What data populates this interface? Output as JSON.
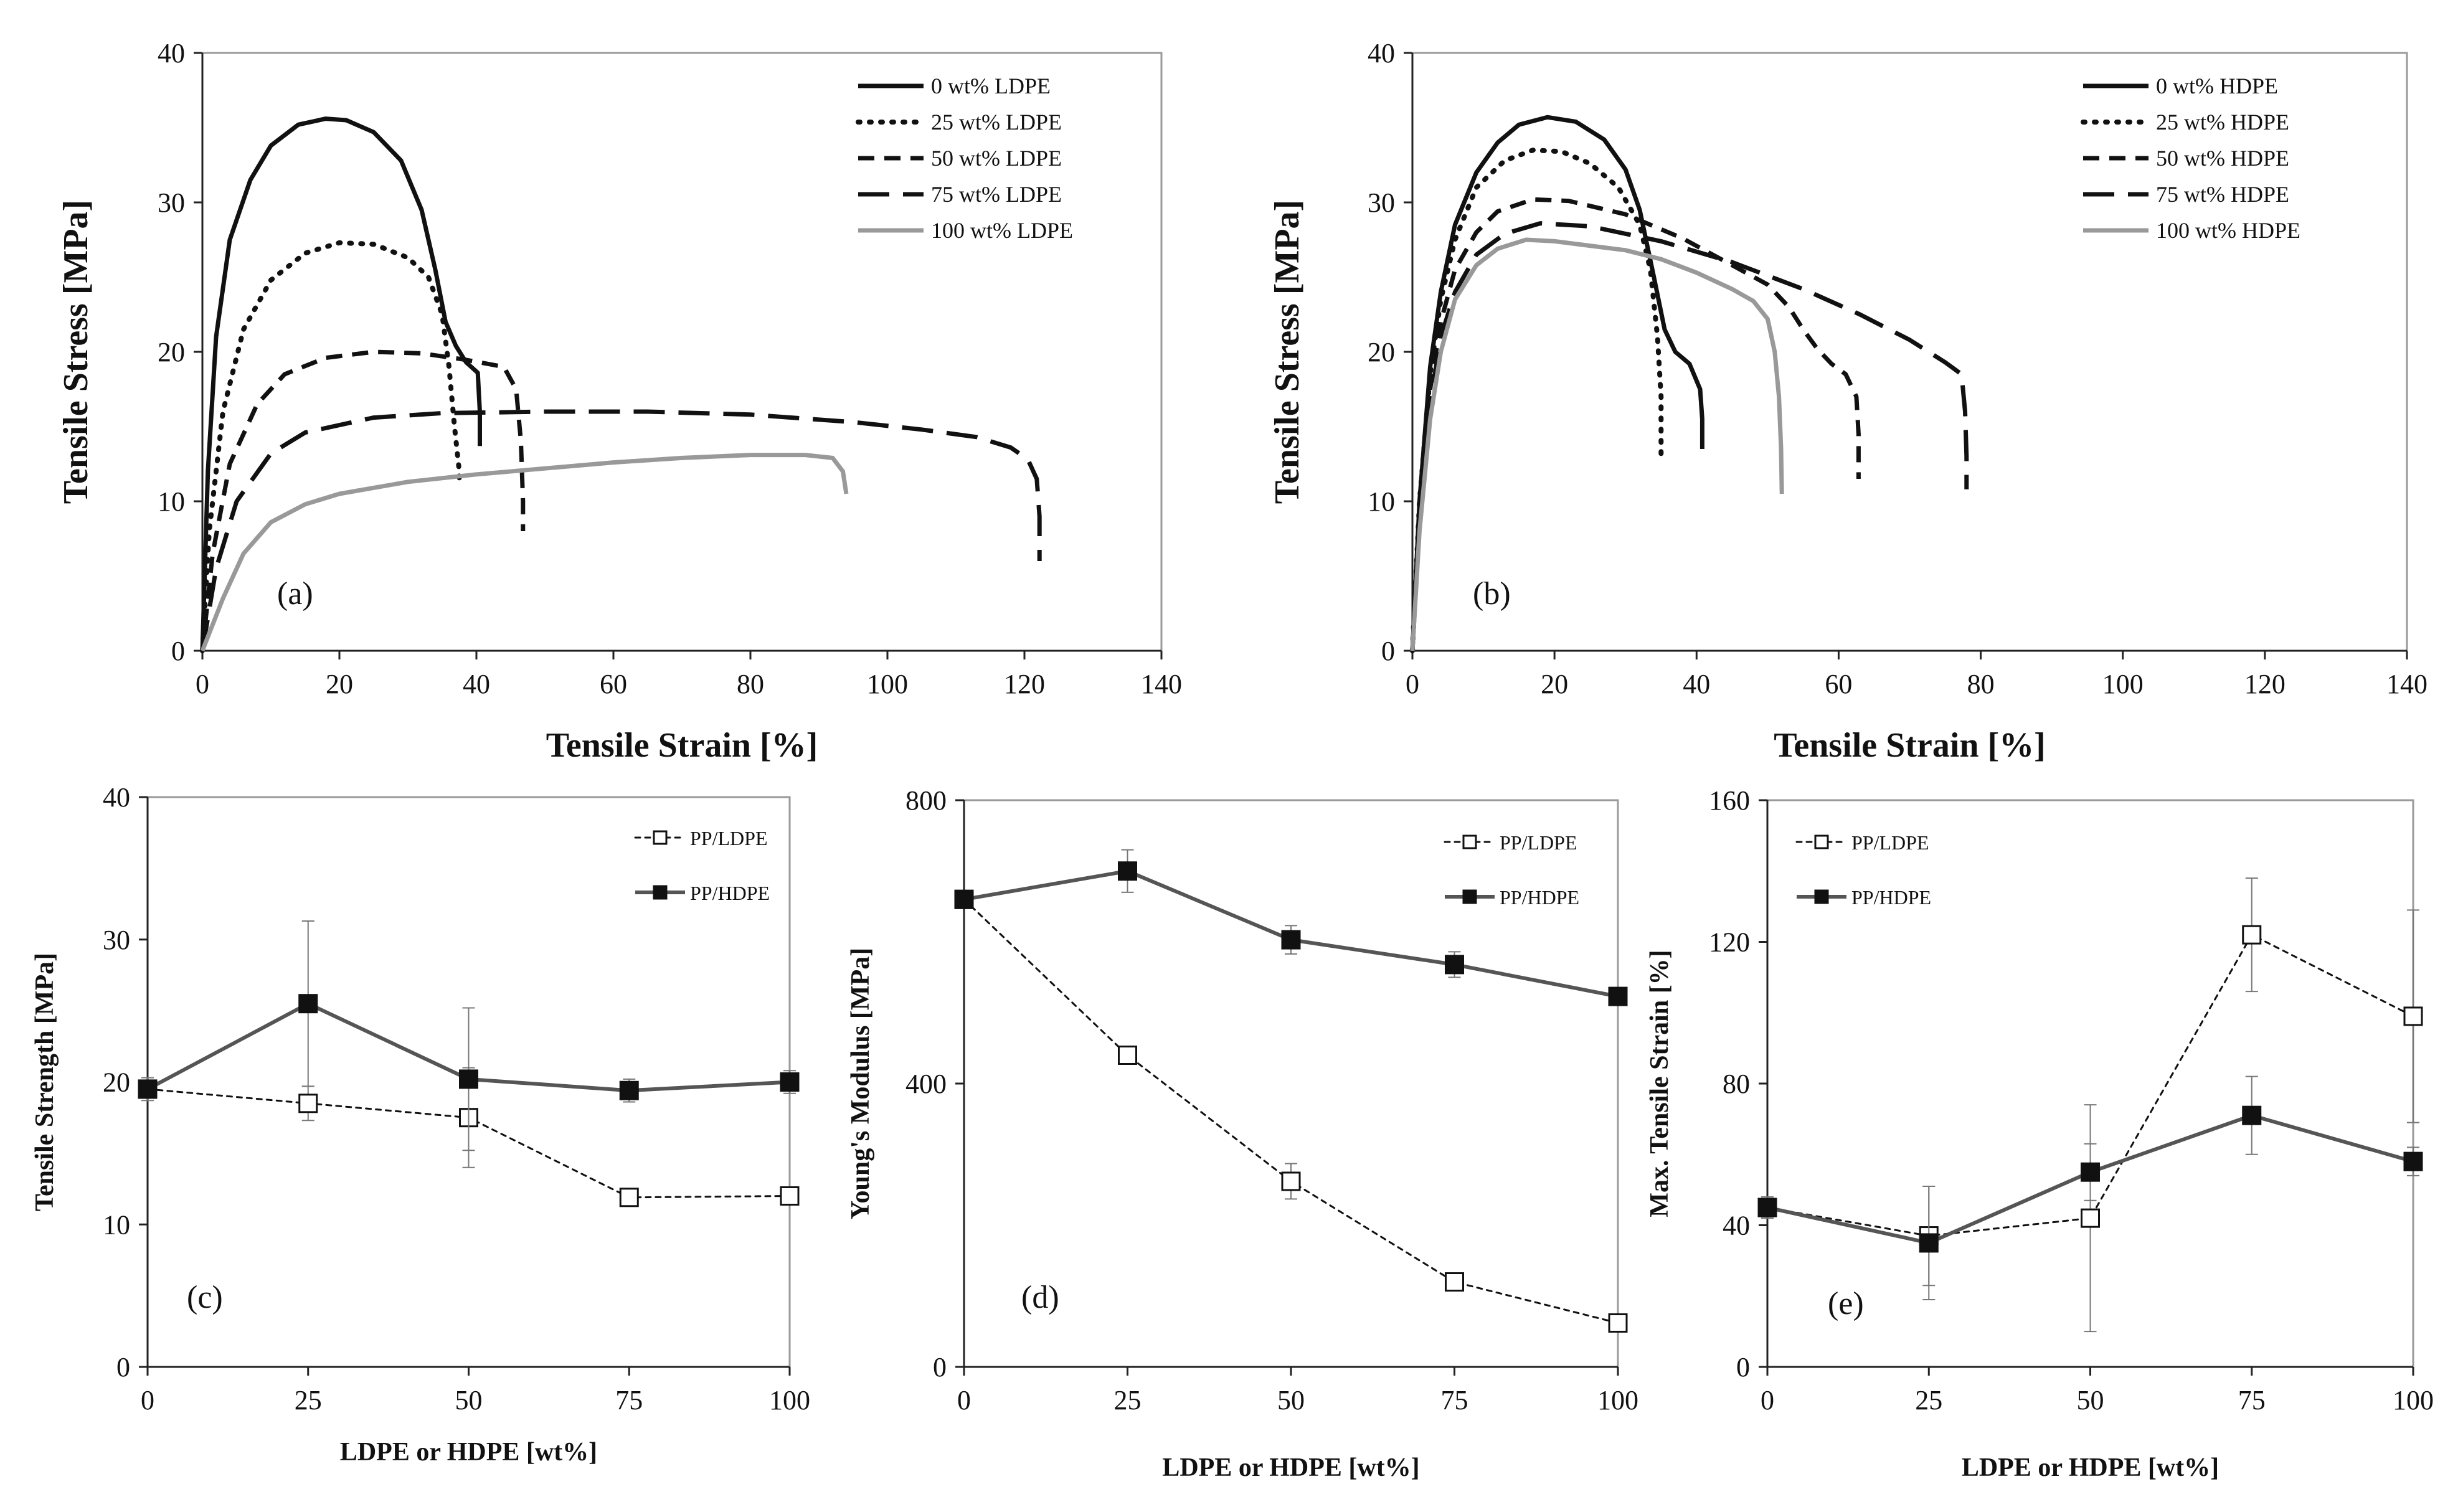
{
  "chart_data": [
    {
      "id": "a",
      "type": "line",
      "panel_label": "(a)",
      "xlabel": "Tensile Strain [%]",
      "ylabel": "Tensile Stress [MPa]",
      "xlim": [
        0,
        140
      ],
      "ylim": [
        0,
        40
      ],
      "xticks": [
        0,
        20,
        40,
        60,
        80,
        100,
        120,
        140
      ],
      "yticks": [
        0,
        10,
        20,
        30,
        40
      ],
      "legend_position": "top-right",
      "series": [
        {
          "name": "0 wt% LDPE",
          "color": "#111111",
          "dash": "solid",
          "x": [
            0,
            0.8,
            2,
            4,
            7,
            10,
            14,
            18,
            21,
            25,
            29,
            32,
            34,
            35.5,
            37,
            38.5,
            40.2,
            40.5,
            40.5
          ],
          "y": [
            0,
            12,
            21,
            27.5,
            31.5,
            33.8,
            35.2,
            35.6,
            35.5,
            34.7,
            32.8,
            29.5,
            25.5,
            22,
            20.4,
            19.3,
            18.6,
            16,
            13.7
          ]
        },
        {
          "name": "25 wt% LDPE",
          "color": "#111111",
          "dash": "dot",
          "x": [
            0,
            1,
            3,
            6,
            10,
            15,
            20,
            25,
            30,
            33,
            35,
            36,
            36.8,
            37.5,
            37.5
          ],
          "y": [
            0,
            8,
            16,
            21.5,
            24.8,
            26.6,
            27.3,
            27.2,
            26.3,
            25,
            22.5,
            19,
            15,
            12,
            11
          ]
        },
        {
          "name": "50 wt% LDPE",
          "color": "#111111",
          "dash": "dash",
          "x": [
            0,
            1.5,
            4,
            8,
            12,
            18,
            25,
            32,
            38,
            44,
            45.8,
            46.5,
            46.8,
            46.8
          ],
          "y": [
            0,
            6.5,
            12.5,
            16.5,
            18.5,
            19.6,
            20,
            19.9,
            19.5,
            19,
            17.5,
            14,
            10,
            8
          ]
        },
        {
          "name": "75 wt% LDPE",
          "color": "#111111",
          "dash": "longdash",
          "x": [
            0,
            2,
            5,
            10,
            15,
            25,
            35,
            50,
            65,
            80,
            95,
            105,
            113,
            118,
            120.5,
            121.8,
            122.2,
            122.2
          ],
          "y": [
            0,
            5.5,
            10,
            13.2,
            14.6,
            15.6,
            15.9,
            16,
            16,
            15.8,
            15.3,
            14.8,
            14.3,
            13.6,
            12.8,
            11.5,
            9,
            6
          ]
        },
        {
          "name": "100 wt% LDPE",
          "color": "#999999",
          "dash": "solid",
          "x": [
            0,
            3,
            6,
            10,
            15,
            20,
            30,
            40,
            50,
            60,
            70,
            80,
            88,
            92,
            93.5,
            94
          ],
          "y": [
            0,
            3.5,
            6.5,
            8.6,
            9.8,
            10.5,
            11.3,
            11.8,
            12.2,
            12.6,
            12.9,
            13.1,
            13.1,
            12.9,
            12,
            10.5
          ]
        }
      ]
    },
    {
      "id": "b",
      "type": "line",
      "panel_label": "(b)",
      "xlabel": "Tensile Strain [%]",
      "ylabel": "Tensile Stress [MPa]",
      "xlim": [
        0,
        140
      ],
      "ylim": [
        0,
        40
      ],
      "xticks": [
        0,
        20,
        40,
        60,
        80,
        100,
        120,
        140
      ],
      "yticks": [
        0,
        10,
        20,
        30,
        40
      ],
      "legend_position": "top-right",
      "series": [
        {
          "name": "0 wt% HDPE",
          "color": "#111111",
          "dash": "solid",
          "x": [
            0,
            1,
            2.5,
            4,
            6,
            9,
            12,
            15,
            19,
            23,
            27,
            30,
            32,
            34,
            35.5,
            37,
            39,
            40.5,
            40.8,
            40.8
          ],
          "y": [
            0,
            10,
            19,
            24,
            28.5,
            32,
            34,
            35.2,
            35.7,
            35.4,
            34.2,
            32.2,
            29.5,
            25,
            21.5,
            20,
            19.2,
            17.5,
            15.5,
            13.5
          ]
        },
        {
          "name": "25 wt% HDPE",
          "color": "#111111",
          "dash": "dot",
          "x": [
            0,
            1,
            2.5,
            4,
            6,
            9,
            13,
            17,
            21,
            25,
            29,
            32,
            33.5,
            34.5,
            35,
            35,
            35
          ],
          "y": [
            0,
            10,
            18.5,
            23.5,
            27.5,
            31,
            32.8,
            33.5,
            33.4,
            32.6,
            31,
            28.5,
            25.5,
            21,
            17,
            14,
            13
          ]
        },
        {
          "name": "50 wt% HDPE",
          "color": "#111111",
          "dash": "dash",
          "x": [
            0,
            1,
            2.5,
            4,
            6,
            9,
            12,
            17,
            22,
            30,
            38,
            45,
            50,
            53,
            55,
            57,
            59,
            61,
            62.5,
            62.8,
            62.8
          ],
          "y": [
            0,
            9,
            17.5,
            22,
            25.5,
            28,
            29.4,
            30.2,
            30.1,
            29.2,
            27.6,
            25.8,
            24.5,
            23,
            21.5,
            20.2,
            19.2,
            18.5,
            17,
            14.5,
            11.5
          ]
        },
        {
          "name": "75 wt% HDPE",
          "color": "#111111",
          "dash": "longdash",
          "x": [
            0,
            1,
            2.5,
            4,
            6,
            9,
            13,
            18,
            25,
            35,
            45,
            55,
            63,
            70,
            75,
            77.3,
            77.8,
            78,
            78
          ],
          "y": [
            0,
            8.5,
            16.5,
            21,
            24,
            26.5,
            27.9,
            28.6,
            28.4,
            27.4,
            26,
            24.2,
            22.5,
            20.8,
            19.3,
            18.5,
            16,
            13,
            10.8
          ]
        },
        {
          "name": "100 wt% HDPE",
          "color": "#999999",
          "dash": "solid",
          "x": [
            0,
            1,
            2.5,
            4,
            6,
            9,
            12,
            16,
            20,
            25,
            30,
            35,
            40,
            45,
            48,
            50,
            51,
            51.6,
            51.9,
            52
          ],
          "y": [
            0,
            8,
            15.5,
            20,
            23.5,
            25.8,
            26.9,
            27.5,
            27.4,
            27.1,
            26.8,
            26.2,
            25.3,
            24.2,
            23.4,
            22.2,
            20,
            17,
            13.5,
            10.5
          ]
        }
      ]
    },
    {
      "id": "c",
      "type": "line",
      "panel_label": "(c)",
      "xlabel": "LDPE or HDPE [wt%]",
      "ylabel": "Tensile Strength [MPa]",
      "xlim": [
        0,
        100
      ],
      "ylim": [
        0,
        40
      ],
      "xticks": [
        0,
        25,
        50,
        75,
        100
      ],
      "yticks": [
        0,
        10,
        20,
        30,
        40
      ],
      "legend_position": "top-right",
      "series": [
        {
          "name": "PP/LDPE",
          "marker": "open-square",
          "dash": "dot",
          "color": "#111111",
          "x": [
            0,
            25,
            50,
            75,
            100
          ],
          "y": [
            19.5,
            18.5,
            17.5,
            11.9,
            12
          ],
          "err": [
            0.8,
            1.2,
            3.5,
            0.4,
            0.5
          ]
        },
        {
          "name": "PP/HDPE",
          "marker": "filled-square",
          "dash": "solid",
          "color": "#111111",
          "x": [
            0,
            25,
            50,
            75,
            100
          ],
          "y": [
            19.5,
            25.5,
            20.2,
            19.4,
            20
          ],
          "err": [
            0.6,
            5.8,
            5,
            0.8,
            0.8
          ]
        }
      ]
    },
    {
      "id": "d",
      "type": "line",
      "panel_label": "(d)",
      "xlabel": "LDPE or HDPE [wt%]",
      "ylabel": "Young's Modulus [MPa]",
      "xlim": [
        0,
        100
      ],
      "ylim": [
        0,
        800
      ],
      "xticks": [
        0,
        25,
        50,
        75,
        100
      ],
      "yticks": [
        0,
        400,
        800
      ],
      "legend_position": "top-right",
      "series": [
        {
          "name": "PP/LDPE",
          "marker": "open-square",
          "dash": "dot",
          "color": "#111111",
          "x": [
            0,
            25,
            50,
            75,
            100
          ],
          "y": [
            660,
            440,
            262,
            120,
            62
          ],
          "err": [
            10,
            12,
            25,
            10,
            10
          ]
        },
        {
          "name": "PP/HDPE",
          "marker": "filled-square",
          "dash": "solid",
          "color": "#111111",
          "x": [
            0,
            25,
            50,
            75,
            100
          ],
          "y": [
            660,
            700,
            603,
            568,
            523
          ],
          "err": [
            12,
            30,
            20,
            18,
            12
          ]
        }
      ]
    },
    {
      "id": "e",
      "type": "line",
      "panel_label": "(e)",
      "xlabel": "LDPE or HDPE [wt%]",
      "ylabel": "Max. Tensile Strain [%]",
      "xlim": [
        0,
        100
      ],
      "ylim": [
        0,
        160
      ],
      "xticks": [
        0,
        25,
        50,
        75,
        100
      ],
      "yticks": [
        0,
        40,
        80,
        120,
        160
      ],
      "legend_position": "top-left",
      "series": [
        {
          "name": "PP/LDPE",
          "marker": "open-square",
          "dash": "dot",
          "color": "#111111",
          "x": [
            0,
            25,
            50,
            75,
            100
          ],
          "y": [
            45,
            37,
            42,
            122,
            99
          ],
          "err": [
            3,
            14,
            32,
            16,
            30
          ]
        },
        {
          "name": "PP/HDPE",
          "marker": "filled-square",
          "dash": "solid",
          "color": "#111111",
          "x": [
            0,
            25,
            50,
            75,
            100
          ],
          "y": [
            45,
            35,
            55,
            71,
            58
          ],
          "err": [
            3,
            16,
            8,
            11,
            4
          ]
        }
      ]
    }
  ]
}
